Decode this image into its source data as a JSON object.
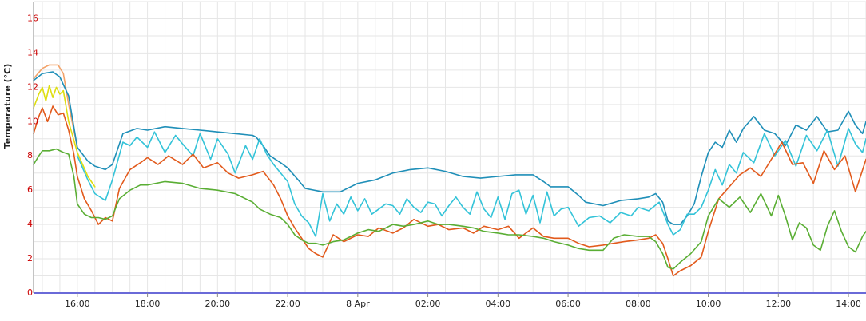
{
  "chart_data": {
    "type": "line",
    "ylabel": "Temperature (°C)",
    "xlabel": "",
    "ylim": [
      0,
      17
    ],
    "xlim": [
      "2014-04-07 14:45",
      "2014-04-08 14:30"
    ],
    "grid": true,
    "y_ticks": [
      "0",
      "2",
      "4",
      "6",
      "8",
      "10",
      "12",
      "14",
      "16"
    ],
    "x_ticks": [
      "16:00",
      "18:00",
      "20:00",
      "22:00",
      "8 Apr",
      "02:00",
      "04:00",
      "06:00",
      "08:00",
      "10:00",
      "12:00",
      "14:00"
    ],
    "x_tick_hours": [
      16,
      18,
      20,
      22,
      24,
      26,
      28,
      30,
      32,
      34,
      36,
      38
    ],
    "x_hours_start": 14.75,
    "x_hours_end": 38.5,
    "colors": {
      "teal": "#1f8fb8",
      "cyan": "#33c3d8",
      "salmon": "#f3a268",
      "yellow": "#dede10",
      "orange": "#e25a1c",
      "green": "#5aae34",
      "grid": "#e6e6e6",
      "axis_ticks": "#cc0000"
    },
    "series": [
      {
        "color_key": "salmon",
        "x_hours": [
          14.75,
          15.0,
          15.2,
          15.45,
          15.6,
          15.75,
          16.0
        ],
        "values": [
          12.5,
          13.1,
          13.3,
          13.3,
          12.8,
          11.0,
          8.5
        ]
      },
      {
        "color_key": "teal",
        "x_hours": [
          14.75,
          15.0,
          15.3,
          15.5,
          15.75,
          16.0,
          16.3,
          16.5,
          16.8,
          17.0,
          17.3,
          17.7,
          18.0,
          18.5,
          19.0,
          19.5,
          20.0,
          20.5,
          21.0,
          21.1,
          21.3,
          21.5,
          21.8,
          22.0,
          22.3,
          22.5,
          23.0,
          23.5,
          24.0,
          24.5,
          25.0,
          25.5,
          26.0,
          26.5,
          27.0,
          27.5,
          28.0,
          28.5,
          29.0,
          29.3,
          29.5,
          30.0,
          30.3,
          30.5,
          31.0,
          31.5,
          32.0,
          32.3,
          32.5,
          32.7,
          32.85,
          33.0,
          33.2,
          33.4,
          33.6,
          33.8,
          34.0,
          34.2,
          34.4,
          34.6,
          34.8,
          35.0,
          35.3,
          35.6,
          35.9,
          36.2,
          36.5,
          36.8,
          37.1,
          37.4,
          37.7,
          38.0,
          38.2,
          38.4,
          38.5
        ],
        "values": [
          12.4,
          12.8,
          12.9,
          12.6,
          11.5,
          8.5,
          7.7,
          7.4,
          7.2,
          7.5,
          9.3,
          9.6,
          9.5,
          9.7,
          9.6,
          9.5,
          9.4,
          9.3,
          9.2,
          9.1,
          8.6,
          8.0,
          7.6,
          7.3,
          6.6,
          6.1,
          5.9,
          5.9,
          6.4,
          6.6,
          7.0,
          7.2,
          7.3,
          7.1,
          6.8,
          6.7,
          6.8,
          6.9,
          6.9,
          6.5,
          6.2,
          6.2,
          5.7,
          5.3,
          5.1,
          5.4,
          5.5,
          5.6,
          5.8,
          5.3,
          4.2,
          4.0,
          4.0,
          4.5,
          5.2,
          6.8,
          8.2,
          8.8,
          8.5,
          9.5,
          8.8,
          9.6,
          10.3,
          9.5,
          9.3,
          8.6,
          9.8,
          9.5,
          10.3,
          9.4,
          9.5,
          10.6,
          9.8,
          9.3,
          10.0
        ]
      },
      {
        "color_key": "yellow",
        "x_hours": [
          14.75,
          14.9,
          15.0,
          15.1,
          15.2,
          15.3,
          15.4,
          15.5,
          15.6,
          15.75,
          16.0,
          16.3,
          16.5
        ],
        "values": [
          10.8,
          11.6,
          12.0,
          11.2,
          12.1,
          11.4,
          12.0,
          11.6,
          11.8,
          10.0,
          8.2,
          6.8,
          6.2
        ]
      },
      {
        "color_key": "cyan",
        "x_hours": [
          16.0,
          16.3,
          16.5,
          16.8,
          17.0,
          17.3,
          17.5,
          17.7,
          18.0,
          18.2,
          18.5,
          18.8,
          19.0,
          19.3,
          19.5,
          19.8,
          20.0,
          20.3,
          20.5,
          20.8,
          21.0,
          21.2,
          21.4,
          21.6,
          21.8,
          22.0,
          22.2,
          22.4,
          22.6,
          22.8,
          23.0,
          23.2,
          23.4,
          23.6,
          23.8,
          24.0,
          24.2,
          24.4,
          24.6,
          24.8,
          25.0,
          25.2,
          25.4,
          25.6,
          25.8,
          26.0,
          26.2,
          26.4,
          26.6,
          26.8,
          27.0,
          27.2,
          27.4,
          27.6,
          27.8,
          28.0,
          28.2,
          28.4,
          28.6,
          28.8,
          29.0,
          29.2,
          29.4,
          29.6,
          29.8,
          30.0,
          30.3,
          30.6,
          30.9,
          31.2,
          31.5,
          31.8,
          32.0,
          32.3,
          32.6,
          32.85,
          33.0,
          33.2,
          33.4,
          33.6,
          33.8,
          34.0,
          34.2,
          34.4,
          34.6,
          34.8,
          35.0,
          35.3,
          35.6,
          35.9,
          36.2,
          36.5,
          36.8,
          37.1,
          37.4,
          37.7,
          38.0,
          38.2,
          38.4,
          38.5
        ],
        "values": [
          8.0,
          6.6,
          5.8,
          5.4,
          6.6,
          8.8,
          8.6,
          9.1,
          8.5,
          9.4,
          8.2,
          9.2,
          8.7,
          8.0,
          9.3,
          7.8,
          9.0,
          8.1,
          7.0,
          8.6,
          7.8,
          9.0,
          8.1,
          7.5,
          7.0,
          6.5,
          5.2,
          4.5,
          4.1,
          3.3,
          5.8,
          4.2,
          5.2,
          4.6,
          5.6,
          4.8,
          5.5,
          4.6,
          4.9,
          5.2,
          5.1,
          4.6,
          5.5,
          5.0,
          4.7,
          5.3,
          5.2,
          4.5,
          5.1,
          5.6,
          5.0,
          4.6,
          5.9,
          4.9,
          4.4,
          5.6,
          4.3,
          5.8,
          6.0,
          4.6,
          5.7,
          4.1,
          5.9,
          4.5,
          4.9,
          5.0,
          3.9,
          4.4,
          4.5,
          4.1,
          4.7,
          4.5,
          5.0,
          4.8,
          5.3,
          4.0,
          3.4,
          3.7,
          4.6,
          4.6,
          5.0,
          6.0,
          7.2,
          6.3,
          7.5,
          7.0,
          8.2,
          7.6,
          9.3,
          8.0,
          8.9,
          7.4,
          9.2,
          8.3,
          9.5,
          7.4,
          9.6,
          8.7,
          8.2,
          9.0
        ]
      },
      {
        "color_key": "orange",
        "x_hours": [
          14.75,
          14.9,
          15.0,
          15.15,
          15.3,
          15.45,
          15.6,
          15.75,
          15.9,
          16.0,
          16.2,
          16.4,
          16.6,
          16.8,
          17.0,
          17.2,
          17.5,
          17.8,
          18.0,
          18.3,
          18.6,
          19.0,
          19.3,
          19.6,
          20.0,
          20.3,
          20.6,
          21.0,
          21.3,
          21.6,
          21.8,
          22.0,
          22.2,
          22.4,
          22.6,
          22.8,
          23.0,
          23.3,
          23.6,
          24.0,
          24.3,
          24.6,
          25.0,
          25.3,
          25.6,
          26.0,
          26.3,
          26.6,
          27.0,
          27.3,
          27.6,
          28.0,
          28.3,
          28.6,
          29.0,
          29.3,
          29.6,
          30.0,
          30.3,
          30.6,
          31.0,
          31.3,
          31.6,
          32.0,
          32.3,
          32.5,
          32.7,
          32.85,
          33.0,
          33.2,
          33.5,
          33.8,
          34.0,
          34.3,
          34.6,
          34.9,
          35.2,
          35.5,
          35.8,
          36.1,
          36.4,
          36.7,
          37.0,
          37.3,
          37.6,
          37.9,
          38.2,
          38.5
        ],
        "values": [
          9.3,
          10.3,
          10.8,
          10.0,
          10.9,
          10.4,
          10.5,
          9.5,
          8.1,
          6.8,
          5.5,
          4.8,
          4.0,
          4.4,
          4.2,
          6.1,
          7.2,
          7.6,
          7.9,
          7.5,
          8.0,
          7.5,
          8.1,
          7.3,
          7.6,
          7.0,
          6.7,
          6.9,
          7.1,
          6.3,
          5.5,
          4.5,
          3.8,
          3.2,
          2.6,
          2.3,
          2.1,
          3.4,
          3.0,
          3.4,
          3.3,
          3.8,
          3.5,
          3.8,
          4.3,
          3.9,
          4.0,
          3.7,
          3.8,
          3.5,
          3.9,
          3.7,
          3.9,
          3.2,
          3.8,
          3.3,
          3.2,
          3.2,
          2.9,
          2.7,
          2.8,
          2.9,
          3.0,
          3.1,
          3.2,
          3.4,
          2.9,
          2.0,
          1.0,
          1.3,
          1.6,
          2.1,
          3.6,
          5.5,
          6.2,
          6.9,
          7.3,
          6.8,
          7.8,
          8.8,
          7.5,
          7.6,
          6.4,
          8.3,
          7.2,
          8.0,
          5.9,
          7.8
        ]
      },
      {
        "color_key": "green",
        "x_hours": [
          14.75,
          14.9,
          15.0,
          15.2,
          15.4,
          15.6,
          15.75,
          15.9,
          16.0,
          16.2,
          16.4,
          16.6,
          16.8,
          17.0,
          17.2,
          17.5,
          17.8,
          18.0,
          18.5,
          19.0,
          19.5,
          20.0,
          20.5,
          21.0,
          21.2,
          21.5,
          21.8,
          22.0,
          22.2,
          22.4,
          22.6,
          22.8,
          23.0,
          23.3,
          23.6,
          24.0,
          24.3,
          24.6,
          25.0,
          25.3,
          25.6,
          26.0,
          26.3,
          26.6,
          27.0,
          27.3,
          27.6,
          28.0,
          28.3,
          28.6,
          29.0,
          29.3,
          29.6,
          30.0,
          30.3,
          30.6,
          31.0,
          31.3,
          31.6,
          32.0,
          32.3,
          32.5,
          32.7,
          32.85,
          33.0,
          33.2,
          33.5,
          33.8,
          34.0,
          34.3,
          34.6,
          34.9,
          35.2,
          35.5,
          35.8,
          36.0,
          36.2,
          36.4,
          36.6,
          36.8,
          37.0,
          37.2,
          37.4,
          37.6,
          37.8,
          38.0,
          38.2,
          38.4,
          38.5
        ],
        "values": [
          7.5,
          8.0,
          8.3,
          8.3,
          8.4,
          8.2,
          8.1,
          6.8,
          5.2,
          4.6,
          4.4,
          4.4,
          4.3,
          4.5,
          5.5,
          6.0,
          6.3,
          6.3,
          6.5,
          6.4,
          6.1,
          6.0,
          5.8,
          5.3,
          4.9,
          4.6,
          4.4,
          4.0,
          3.4,
          3.1,
          2.9,
          2.9,
          2.8,
          3.0,
          3.1,
          3.5,
          3.7,
          3.6,
          4.0,
          3.9,
          4.0,
          4.2,
          4.0,
          4.0,
          3.9,
          3.8,
          3.6,
          3.5,
          3.4,
          3.4,
          3.3,
          3.2,
          3.0,
          2.8,
          2.6,
          2.5,
          2.5,
          3.2,
          3.4,
          3.3,
          3.3,
          3.0,
          2.3,
          1.5,
          1.4,
          1.8,
          2.3,
          3.0,
          4.5,
          5.5,
          5.0,
          5.6,
          4.7,
          5.8,
          4.5,
          5.7,
          4.5,
          3.1,
          4.1,
          3.8,
          2.8,
          2.5,
          3.9,
          4.8,
          3.6,
          2.7,
          2.4,
          3.3,
          3.6
        ]
      }
    ]
  }
}
